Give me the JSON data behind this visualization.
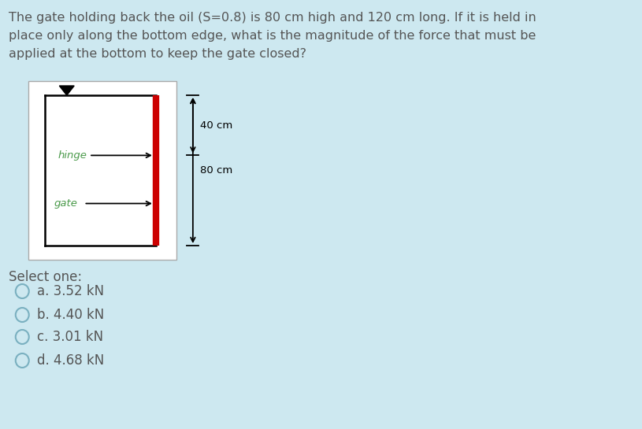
{
  "background_color": "#cde8f0",
  "question_text": "The gate holding back the oil (S=0.8) is 80 cm high and 120 cm long. If it is held in\nplace only along the bottom edge, what is the magnitude of the force that must be\napplied at the bottom to keep the gate closed?",
  "select_one_text": "Select one:",
  "options": [
    "a. 3.52 kN",
    "b. 4.40 kN",
    "c. 3.01 kN",
    "d. 4.68 kN"
  ],
  "hinge_label": "hinge",
  "gate_label": "gate",
  "hinge_label_color": "#4a9a4a",
  "gate_label_color": "#4a9a4a",
  "dim_40cm": "40 cm",
  "dim_80cm": "80 cm",
  "gate_color": "#cc0000",
  "text_color": "#555555",
  "option_text_color": "#555555",
  "question_fontsize": 11.5,
  "option_fontsize": 12,
  "select_fontsize": 12,
  "circle_color": "#7ab0c0"
}
